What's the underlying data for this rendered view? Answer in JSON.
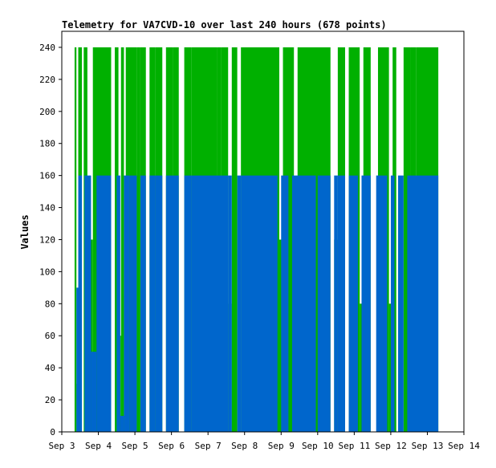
{
  "chart_data": {
    "type": "area",
    "title": "Telemetry for VA7CVD-10 over last 240 hours (678 points)",
    "xlabel": "",
    "ylabel": "Values",
    "x_tick_labels": [
      "Sep 3",
      "Sep 4",
      "Sep 5",
      "Sep 6",
      "Sep 7",
      "Sep 8",
      "Sep 9",
      "Sep 10",
      "Sep 11",
      "Sep 12",
      "Sep 13",
      "Sep 14"
    ],
    "xlim_days": [
      3,
      14
    ],
    "ylim": [
      0,
      250
    ],
    "y_ticks": [
      0,
      20,
      40,
      60,
      80,
      100,
      120,
      140,
      160,
      180,
      200,
      220,
      240
    ],
    "grid": false,
    "legend": "none",
    "colors": {
      "series1": "#00b000",
      "series2": "#0066cc",
      "axis": "#000000"
    },
    "series": [
      {
        "color_key": "series1",
        "levels": [
          240,
          0,
          160,
          240
        ],
        "pattern_note": "Step series alternating between 240 and low values, concentrated Sep 3.4 to Sep 13.3",
        "segments": [
          [
            3.35,
            3.4,
            240
          ],
          [
            3.4,
            3.45,
            30
          ],
          [
            3.45,
            3.55,
            240
          ],
          [
            3.55,
            3.6,
            0
          ],
          [
            3.6,
            3.7,
            240
          ],
          [
            3.7,
            3.85,
            120
          ],
          [
            3.85,
            4.35,
            240
          ],
          [
            4.35,
            4.45,
            0
          ],
          [
            4.45,
            4.55,
            240
          ],
          [
            4.55,
            4.62,
            60
          ],
          [
            4.62,
            4.7,
            240
          ],
          [
            4.7,
            4.75,
            85
          ],
          [
            4.75,
            5.05,
            240
          ],
          [
            5.05,
            5.15,
            240
          ],
          [
            5.15,
            5.3,
            240
          ],
          [
            5.3,
            5.4,
            0
          ],
          [
            5.4,
            5.55,
            240
          ],
          [
            5.55,
            5.75,
            240
          ],
          [
            5.75,
            5.85,
            0
          ],
          [
            5.85,
            6.05,
            240
          ],
          [
            6.05,
            6.2,
            240
          ],
          [
            6.2,
            6.35,
            0
          ],
          [
            6.35,
            6.55,
            240
          ],
          [
            6.55,
            7.25,
            240
          ],
          [
            7.25,
            7.35,
            240
          ],
          [
            7.35,
            7.55,
            240
          ],
          [
            7.55,
            7.65,
            80
          ],
          [
            7.65,
            7.8,
            240
          ],
          [
            7.8,
            7.9,
            0
          ],
          [
            7.9,
            8.95,
            240
          ],
          [
            8.95,
            9.05,
            120
          ],
          [
            9.05,
            9.35,
            240
          ],
          [
            9.35,
            9.45,
            80
          ],
          [
            9.45,
            10.35,
            240
          ],
          [
            10.35,
            10.45,
            0
          ],
          [
            10.45,
            10.55,
            120
          ],
          [
            10.55,
            10.75,
            240
          ],
          [
            10.75,
            10.85,
            0
          ],
          [
            10.85,
            11.15,
            240
          ],
          [
            11.15,
            11.25,
            80
          ],
          [
            11.25,
            11.45,
            240
          ],
          [
            11.45,
            11.65,
            0
          ],
          [
            11.65,
            11.95,
            240
          ],
          [
            11.95,
            12.05,
            80
          ],
          [
            12.05,
            12.15,
            240
          ],
          [
            12.15,
            12.35,
            0
          ],
          [
            12.35,
            12.55,
            240
          ],
          [
            12.55,
            12.7,
            240
          ],
          [
            12.7,
            13.3,
            240
          ]
        ]
      },
      {
        "color_key": "series2",
        "levels": [
          160,
          0
        ],
        "pattern_note": "Step series alternating between 160 and 0",
        "segments": [
          [
            3.4,
            3.45,
            90
          ],
          [
            3.45,
            3.55,
            160
          ],
          [
            3.55,
            3.62,
            0
          ],
          [
            3.62,
            3.8,
            160
          ],
          [
            3.8,
            3.95,
            50
          ],
          [
            3.95,
            4.35,
            160
          ],
          [
            4.35,
            4.5,
            0
          ],
          [
            4.5,
            4.6,
            160
          ],
          [
            4.6,
            4.7,
            10
          ],
          [
            4.7,
            4.85,
            160
          ],
          [
            4.85,
            5.05,
            160
          ],
          [
            5.05,
            5.15,
            0
          ],
          [
            5.15,
            5.3,
            160
          ],
          [
            5.3,
            5.4,
            0
          ],
          [
            5.4,
            5.55,
            160
          ],
          [
            5.55,
            5.75,
            160
          ],
          [
            5.75,
            5.85,
            0
          ],
          [
            5.85,
            6.2,
            160
          ],
          [
            6.2,
            6.35,
            0
          ],
          [
            6.35,
            6.55,
            160
          ],
          [
            6.55,
            7.55,
            160
          ],
          [
            7.55,
            7.65,
            160
          ],
          [
            7.65,
            7.8,
            0
          ],
          [
            7.8,
            7.9,
            160
          ],
          [
            7.9,
            8.9,
            160
          ],
          [
            8.9,
            9.0,
            0
          ],
          [
            9.0,
            9.2,
            160
          ],
          [
            9.2,
            9.3,
            0
          ],
          [
            9.3,
            9.95,
            160
          ],
          [
            9.95,
            10.0,
            0
          ],
          [
            10.0,
            10.35,
            160
          ],
          [
            10.35,
            10.45,
            0
          ],
          [
            10.45,
            10.55,
            160
          ],
          [
            10.55,
            10.75,
            160
          ],
          [
            10.75,
            10.85,
            0
          ],
          [
            10.85,
            11.1,
            160
          ],
          [
            11.1,
            11.2,
            0
          ],
          [
            11.2,
            11.45,
            160
          ],
          [
            11.45,
            11.6,
            0
          ],
          [
            11.6,
            11.9,
            160
          ],
          [
            11.9,
            12.0,
            0
          ],
          [
            12.0,
            12.1,
            160
          ],
          [
            12.1,
            12.2,
            0
          ],
          [
            12.2,
            12.35,
            160
          ],
          [
            12.35,
            12.45,
            0
          ],
          [
            12.45,
            13.3,
            160
          ]
        ]
      }
    ]
  }
}
